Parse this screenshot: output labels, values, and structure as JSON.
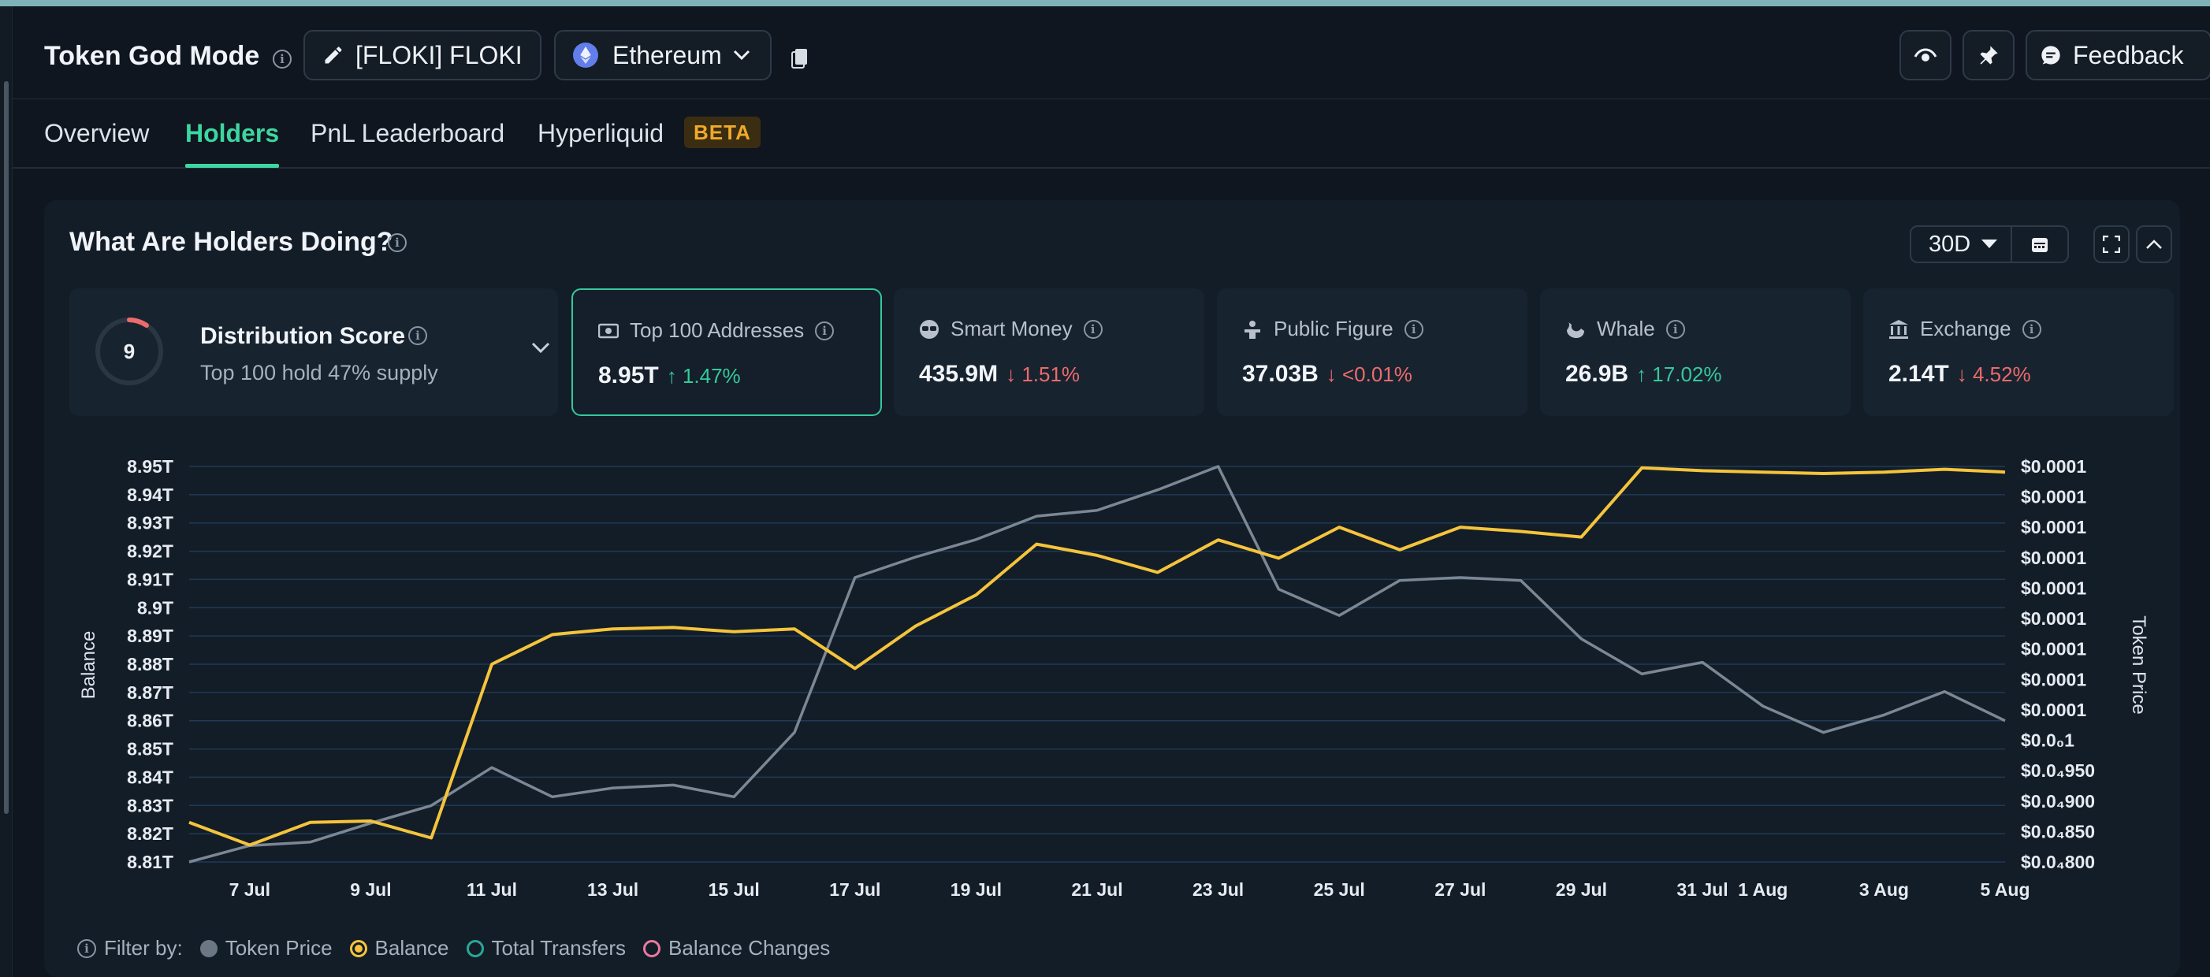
{
  "header": {
    "title": "Token God Mode",
    "token_label": "[FLOKI] FLOKI",
    "chain_label": "Ethereum",
    "feedback_label": "Feedback"
  },
  "tabs": [
    {
      "label": "Overview"
    },
    {
      "label": "Holders",
      "active": true
    },
    {
      "label": "PnL Leaderboard"
    },
    {
      "label": "Hyperliquid",
      "badge": "BETA"
    }
  ],
  "card": {
    "title": "What Are Holders Doing?",
    "period": "30D"
  },
  "distribution": {
    "score": "9",
    "title": "Distribution Score",
    "subtitle": "Top 100 hold 47% supply"
  },
  "stats": [
    {
      "label": "Top 100 Addresses",
      "value": "8.95T",
      "change": "1.47%",
      "direction": "up",
      "icon": "money-icon"
    },
    {
      "label": "Smart Money",
      "value": "435.9M",
      "change": "1.51%",
      "direction": "down",
      "icon": "sunglasses-icon"
    },
    {
      "label": "Public Figure",
      "value": "37.03B",
      "change": "<0.01%",
      "direction": "down",
      "icon": "podium-icon"
    },
    {
      "label": "Whale",
      "value": "26.9B",
      "change": "17.02%",
      "direction": "up",
      "icon": "whale-icon"
    },
    {
      "label": "Exchange",
      "value": "2.14T",
      "change": "4.52%",
      "direction": "down",
      "icon": "bank-icon"
    }
  ],
  "filter": {
    "label": "Filter by:",
    "items": [
      {
        "label": "Token Price",
        "color": "#6b7785",
        "style": "filled"
      },
      {
        "label": "Balance",
        "color": "#f5c43b",
        "style": "ring-dot"
      },
      {
        "label": "Total Transfers",
        "color": "#2aa79a",
        "style": "ring"
      },
      {
        "label": "Balance Changes",
        "color": "#e87aa0",
        "style": "ring"
      }
    ]
  },
  "colors": {
    "accent": "#3ed6a0",
    "balance_line": "#f5c43b",
    "price_line": "#7c8794",
    "up": "#35c99a",
    "down": "#ec6b6b"
  },
  "chart_data": {
    "type": "line",
    "xlabel": "",
    "ylabel": "Balance",
    "ylabel_right": "Token Price",
    "x_ticks": [
      "7 Jul",
      "9 Jul",
      "11 Jul",
      "13 Jul",
      "15 Jul",
      "17 Jul",
      "19 Jul",
      "21 Jul",
      "23 Jul",
      "25 Jul",
      "27 Jul",
      "29 Jul",
      "31 Jul",
      "1 Aug",
      "3 Aug",
      "5 Aug"
    ],
    "y_ticks_left": [
      "8.95T",
      "8.94T",
      "8.93T",
      "8.92T",
      "8.91T",
      "8.9T",
      "8.89T",
      "8.88T",
      "8.87T",
      "8.86T",
      "8.85T",
      "8.84T",
      "8.83T",
      "8.82T",
      "8.81T"
    ],
    "y_ticks_right": [
      "$0.0001",
      "$0.0001",
      "$0.0001",
      "$0.0001",
      "$0.0001",
      "$0.0001",
      "$0.0001",
      "$0.0001",
      "$0.0001",
      "$0.0₀1",
      "$0.0₄950",
      "$0.0₄900",
      "$0.0₄850",
      "$0.0₄800"
    ],
    "ylim_left": [
      8.81,
      8.95
    ],
    "grid": true,
    "x": [
      "6 Jul",
      "7 Jul",
      "8 Jul",
      "9 Jul",
      "10 Jul",
      "11 Jul",
      "12 Jul",
      "13 Jul",
      "14 Jul",
      "15 Jul",
      "16 Jul",
      "17 Jul",
      "18 Jul",
      "19 Jul",
      "20 Jul",
      "21 Jul",
      "22 Jul",
      "23 Jul",
      "24 Jul",
      "25 Jul",
      "26 Jul",
      "27 Jul",
      "28 Jul",
      "29 Jul",
      "30 Jul",
      "31 Jul",
      "1 Aug",
      "2 Aug",
      "3 Aug",
      "4 Aug",
      "5 Aug"
    ],
    "series": [
      {
        "name": "Balance",
        "axis": "left",
        "unit": "T",
        "values": [
          8.824,
          8.816,
          8.824,
          8.8245,
          8.8185,
          8.88,
          8.8905,
          8.8925,
          8.893,
          8.8915,
          8.8925,
          8.8785,
          8.8935,
          8.9045,
          8.9225,
          8.9185,
          8.9125,
          8.924,
          8.9175,
          8.9285,
          8.9205,
          8.9285,
          8.927,
          8.925,
          8.9495,
          8.9485,
          8.948,
          8.9475,
          8.948,
          8.949,
          8.948
        ]
      },
      {
        "name": "Token Price",
        "axis": "right",
        "unit": "$",
        "values": [
          7.77e-05,
          8.33e-05,
          8.45e-05,
          9.1e-05,
          9.7e-05,
          0.00011,
          0.0001,
          0.000103,
          0.000104,
          0.0001,
          0.000122,
          0.000175,
          0.000182,
          0.000188,
          0.000196,
          0.000198,
          0.000205,
          0.000213,
          0.000171,
          0.000162,
          0.000174,
          0.000175,
          0.000174,
          0.000154,
          0.000142,
          0.000146,
          0.000131,
          0.000122,
          0.000128,
          0.000136,
          0.000126
        ]
      }
    ]
  }
}
